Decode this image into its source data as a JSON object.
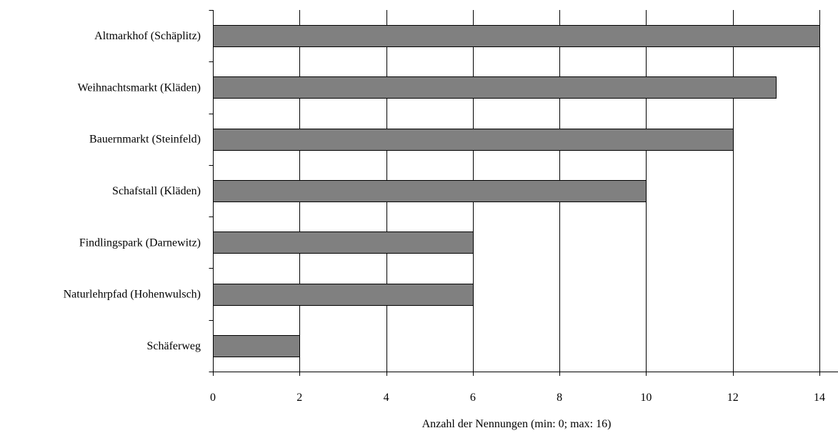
{
  "chart_data": {
    "type": "bar",
    "orientation": "horizontal",
    "categories": [
      "Altmarkhof (Schäplitz)",
      "Weihnachtsmarkt (Kläden)",
      "Bauernmarkt (Steinfeld)",
      "Schafstall (Kläden)",
      "Findlingspark (Darnewitz)",
      "Naturlehrpfad (Hohenwulsch)",
      "Schäferweg"
    ],
    "values": [
      14,
      13,
      12,
      10,
      6,
      6,
      2
    ],
    "title": "",
    "xlabel": "Anzahl der Nennungen (min: 0; max: 16)",
    "ylabel": "",
    "xlim": [
      0,
      14
    ],
    "xticks": [
      0,
      2,
      4,
      6,
      8,
      10,
      12,
      14
    ],
    "grid": "vertical",
    "legend": "none",
    "bar_color": "#808080"
  }
}
